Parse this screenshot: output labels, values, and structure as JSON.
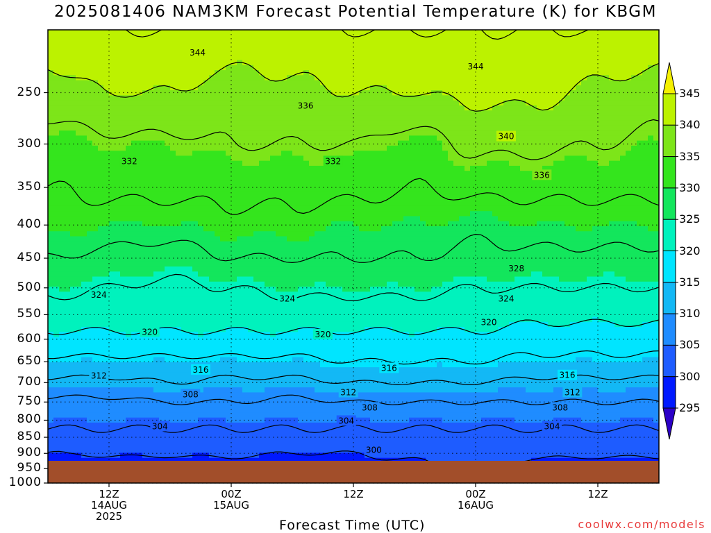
{
  "title": "2025081406 NAM3KM Forecast Potential Temperature (K) for KBGM",
  "xlabel": "Forecast Time (UTC)",
  "credit": "coolwx.com/models",
  "colors": {
    "terrain": "#a24e2a",
    "line": "#000000",
    "bins": [
      "#2c00c8",
      "#0019ff",
      "#1e5cff",
      "#1f8cff",
      "#13b8f5",
      "#00e5ff",
      "#00f2bd",
      "#13e65c",
      "#34e51d",
      "#7de519",
      "#bcf200",
      "#f5f000"
    ]
  },
  "chart_data": {
    "type": "contour",
    "title": "2025081406 NAM3KM Forecast Potential Temperature (K) for KBGM",
    "xlabel": "Forecast Time (UTC)",
    "ylabel": "",
    "x_range_hours": [
      0,
      60
    ],
    "y_axis": "pressure (hPa), reversed, log-scaled",
    "ylim": [
      1000,
      200
    ],
    "yticks": [
      250,
      300,
      350,
      400,
      450,
      500,
      550,
      600,
      650,
      700,
      750,
      800,
      850,
      900,
      950,
      1000
    ],
    "xticks": [
      {
        "hour": 6,
        "lines": [
          "12Z",
          "14AUG",
          "2025"
        ]
      },
      {
        "hour": 18,
        "lines": [
          "00Z",
          "15AUG"
        ]
      },
      {
        "hour": 30,
        "lines": [
          "12Z"
        ]
      },
      {
        "hour": 42,
        "lines": [
          "00Z",
          "16AUG"
        ]
      },
      {
        "hour": 54,
        "lines": [
          "12Z"
        ]
      }
    ],
    "grid": "dotted",
    "colorbar": {
      "labels": [
        345,
        340,
        335,
        330,
        325,
        320,
        315,
        310,
        305,
        300,
        295
      ],
      "bounds": [
        290,
        295,
        300,
        305,
        310,
        315,
        320,
        325,
        330,
        335,
        340,
        345,
        350
      ]
    },
    "profile_columns": [
      {
        "hour": 0,
        "rows": [
          [
            950,
            293
          ],
          [
            900,
            300
          ],
          [
            850,
            303
          ],
          [
            800,
            305
          ],
          [
            750,
            307
          ],
          [
            700,
            311
          ],
          [
            650,
            315
          ],
          [
            600,
            319
          ],
          [
            550,
            322
          ],
          [
            500,
            325
          ],
          [
            450,
            328
          ],
          [
            400,
            331
          ],
          [
            350,
            332
          ],
          [
            300,
            334
          ],
          [
            250,
            338
          ],
          [
            200,
            343
          ]
        ]
      },
      {
        "hour": 6,
        "rows": [
          [
            950,
            296
          ],
          [
            900,
            301
          ],
          [
            850,
            303
          ],
          [
            800,
            305
          ],
          [
            750,
            307
          ],
          [
            700,
            311
          ],
          [
            650,
            315
          ],
          [
            600,
            319
          ],
          [
            550,
            322
          ],
          [
            500,
            324
          ],
          [
            450,
            327
          ],
          [
            400,
            330
          ],
          [
            350,
            333
          ],
          [
            300,
            335
          ],
          [
            250,
            340
          ],
          [
            200,
            344
          ]
        ]
      },
      {
        "hour": 12,
        "rows": [
          [
            950,
            296
          ],
          [
            900,
            301
          ],
          [
            850,
            303
          ],
          [
            800,
            305
          ],
          [
            750,
            308
          ],
          [
            700,
            312
          ],
          [
            650,
            315
          ],
          [
            600,
            319
          ],
          [
            550,
            322
          ],
          [
            500,
            323
          ],
          [
            450,
            326
          ],
          [
            400,
            330
          ],
          [
            350,
            333
          ],
          [
            300,
            335
          ],
          [
            250,
            340
          ],
          [
            200,
            344
          ]
        ]
      },
      {
        "hour": 18,
        "rows": [
          [
            950,
            297
          ],
          [
            900,
            301
          ],
          [
            850,
            303
          ],
          [
            800,
            305
          ],
          [
            750,
            308
          ],
          [
            700,
            311
          ],
          [
            650,
            315
          ],
          [
            600,
            319
          ],
          [
            550,
            322
          ],
          [
            500,
            324
          ],
          [
            450,
            328
          ],
          [
            400,
            331
          ],
          [
            350,
            333
          ],
          [
            300,
            336
          ],
          [
            250,
            338
          ],
          [
            200,
            343
          ]
        ]
      },
      {
        "hour": 24,
        "rows": [
          [
            950,
            296
          ],
          [
            900,
            300
          ],
          [
            850,
            303
          ],
          [
            800,
            305
          ],
          [
            750,
            307
          ],
          [
            700,
            311
          ],
          [
            650,
            315
          ],
          [
            600,
            319
          ],
          [
            550,
            322
          ],
          [
            500,
            325
          ],
          [
            450,
            328
          ],
          [
            400,
            331
          ],
          [
            350,
            333
          ],
          [
            300,
            336
          ],
          [
            250,
            339
          ],
          [
            200,
            343
          ]
        ]
      },
      {
        "hour": 30,
        "rows": [
          [
            950,
            298
          ],
          [
            900,
            300
          ],
          [
            850,
            303
          ],
          [
            800,
            305
          ],
          [
            750,
            308
          ],
          [
            700,
            312
          ],
          [
            650,
            316
          ],
          [
            600,
            319
          ],
          [
            550,
            322
          ],
          [
            500,
            325
          ],
          [
            450,
            328
          ],
          [
            400,
            330
          ],
          [
            350,
            333
          ],
          [
            300,
            336
          ],
          [
            250,
            340
          ],
          [
            200,
            344
          ]
        ]
      },
      {
        "hour": 36,
        "rows": [
          [
            950,
            299
          ],
          [
            900,
            301
          ],
          [
            850,
            303
          ],
          [
            800,
            305
          ],
          [
            750,
            308
          ],
          [
            700,
            312
          ],
          [
            650,
            316
          ],
          [
            600,
            319
          ],
          [
            550,
            322
          ],
          [
            500,
            325
          ],
          [
            450,
            328
          ],
          [
            400,
            330
          ],
          [
            350,
            332
          ],
          [
            300,
            334
          ],
          [
            250,
            340
          ],
          [
            200,
            344
          ]
        ]
      },
      {
        "hour": 42,
        "rows": [
          [
            950,
            300
          ],
          [
            900,
            302
          ],
          [
            850,
            303
          ],
          [
            800,
            305
          ],
          [
            750,
            308
          ],
          [
            700,
            312
          ],
          [
            650,
            316
          ],
          [
            600,
            319
          ],
          [
            550,
            322
          ],
          [
            500,
            324
          ],
          [
            450,
            327
          ],
          [
            400,
            329
          ],
          [
            350,
            333
          ],
          [
            300,
            337
          ],
          [
            250,
            341
          ],
          [
            200,
            344
          ]
        ]
      },
      {
        "hour": 48,
        "rows": [
          [
            950,
            298
          ],
          [
            900,
            301
          ],
          [
            850,
            303
          ],
          [
            800,
            305
          ],
          [
            750,
            308
          ],
          [
            700,
            311
          ],
          [
            650,
            315
          ],
          [
            600,
            318
          ],
          [
            550,
            321
          ],
          [
            500,
            324
          ],
          [
            450,
            327
          ],
          [
            400,
            330
          ],
          [
            350,
            333
          ],
          [
            300,
            337
          ],
          [
            250,
            341
          ],
          [
            200,
            344
          ]
        ]
      },
      {
        "hour": 54,
        "rows": [
          [
            950,
            297
          ],
          [
            900,
            301
          ],
          [
            850,
            303
          ],
          [
            800,
            305
          ],
          [
            750,
            308
          ],
          [
            700,
            311
          ],
          [
            650,
            315
          ],
          [
            600,
            318
          ],
          [
            550,
            321
          ],
          [
            500,
            324
          ],
          [
            450,
            327
          ],
          [
            400,
            330
          ],
          [
            350,
            333
          ],
          [
            300,
            336
          ],
          [
            250,
            339
          ],
          [
            200,
            344
          ]
        ]
      },
      {
        "hour": 60,
        "rows": [
          [
            950,
            297
          ],
          [
            900,
            301
          ],
          [
            850,
            303
          ],
          [
            800,
            305
          ],
          [
            750,
            308
          ],
          [
            700,
            311
          ],
          [
            650,
            315
          ],
          [
            600,
            318
          ],
          [
            550,
            321
          ],
          [
            500,
            324
          ],
          [
            450,
            327
          ],
          [
            400,
            330
          ],
          [
            350,
            333
          ],
          [
            300,
            335
          ],
          [
            250,
            338
          ],
          [
            200,
            343
          ]
        ]
      }
    ],
    "contour_levels": [
      300,
      304,
      308,
      312,
      316,
      320,
      324,
      328,
      332,
      336,
      340,
      344
    ],
    "contour_labels": [
      {
        "value": 344,
        "hour": 14.7,
        "hPa": 217
      },
      {
        "value": 344,
        "hour": 42,
        "hPa": 228
      },
      {
        "value": 336,
        "hour": 25.3,
        "hPa": 262
      },
      {
        "value": 340,
        "hour": 45,
        "hPa": 292
      },
      {
        "value": 332,
        "hour": 8,
        "hPa": 319
      },
      {
        "value": 332,
        "hour": 28,
        "hPa": 319
      },
      {
        "value": 336,
        "hour": 48.5,
        "hPa": 335
      },
      {
        "value": 328,
        "hour": 46,
        "hPa": 467
      },
      {
        "value": 324,
        "hour": 5,
        "hPa": 513
      },
      {
        "value": 324,
        "hour": 23.5,
        "hPa": 520
      },
      {
        "value": 324,
        "hour": 45,
        "hPa": 520
      },
      {
        "value": 320,
        "hour": 10,
        "hPa": 585
      },
      {
        "value": 320,
        "hour": 27,
        "hPa": 590
      },
      {
        "value": 320,
        "hour": 43.3,
        "hPa": 565
      },
      {
        "value": 316,
        "hour": 15,
        "hPa": 669
      },
      {
        "value": 316,
        "hour": 33.5,
        "hPa": 665
      },
      {
        "value": 316,
        "hour": 51,
        "hPa": 682
      },
      {
        "value": 312,
        "hour": 5,
        "hPa": 683
      },
      {
        "value": 312,
        "hour": 29.5,
        "hPa": 725
      },
      {
        "value": 312,
        "hour": 51.5,
        "hPa": 725
      },
      {
        "value": 308,
        "hour": 14,
        "hPa": 730
      },
      {
        "value": 308,
        "hour": 31.6,
        "hPa": 765
      },
      {
        "value": 308,
        "hour": 50.3,
        "hPa": 765
      },
      {
        "value": 304,
        "hour": 11,
        "hPa": 818
      },
      {
        "value": 304,
        "hour": 29.3,
        "hPa": 802
      },
      {
        "value": 304,
        "hour": 49.5,
        "hPa": 818
      },
      {
        "value": 300,
        "hour": 32,
        "hPa": 890
      }
    ]
  }
}
